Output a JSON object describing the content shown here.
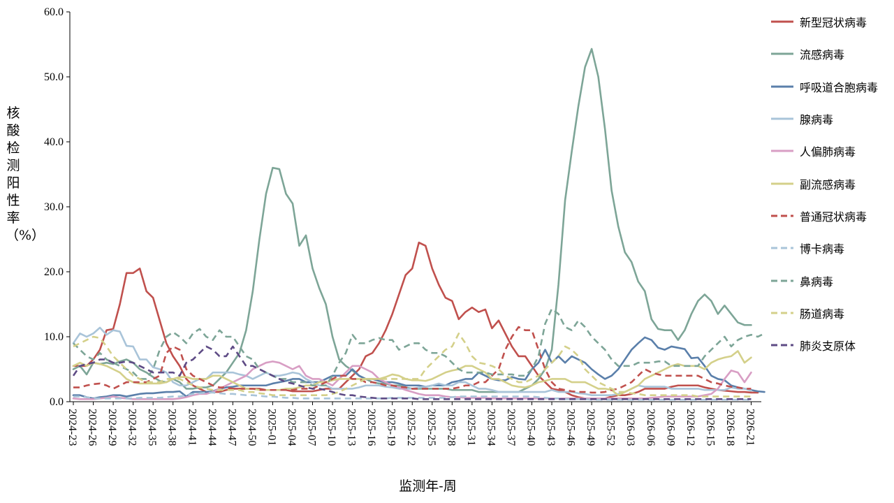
{
  "chart_data": {
    "type": "line",
    "ylabel": "核酸检测阳性率（%）",
    "xlabel": "监测年-周",
    "ylim": [
      0,
      60
    ],
    "y_ticks": [
      "0.0",
      "10.0",
      "20.0",
      "30.0",
      "40.0",
      "50.0",
      "60.0"
    ],
    "x_tick_labels": [
      "2024-23",
      "2024-26",
      "2024-29",
      "2024-32",
      "2024-35",
      "2024-38",
      "2024-41",
      "2024-44",
      "2024-47",
      "2024-50",
      "2025-01",
      "2025-04",
      "2025-07",
      "2025-10",
      "2025-13",
      "2025-16",
      "2025-19",
      "2025-22",
      "2025-25",
      "2025-28",
      "2025-31",
      "2025-34",
      "2025-37",
      "2025-40",
      "2025-43",
      "2025-46",
      "2025-49",
      "2025-52",
      "2026-03",
      "2026-06",
      "2026-09",
      "2026-12",
      "2026-15",
      "2026-18",
      "2026-21"
    ],
    "x_points_per_tick": 3,
    "legend_position": "right",
    "series": [
      {
        "name": "新型冠状病毒",
        "color": "#C0504D",
        "dash": "solid",
        "values": [
          5.5,
          5.5,
          5.5,
          6.5,
          8,
          11,
          11.2,
          15,
          19.8,
          19.8,
          20.5,
          17,
          16,
          12.5,
          9,
          7,
          5.5,
          3.5,
          2.5,
          2,
          1.5,
          1.5,
          1.5,
          1.8,
          2,
          2,
          2,
          2,
          2,
          1.8,
          1.8,
          1.8,
          1.8,
          1.6,
          1.6,
          1.6,
          1.6,
          1.8,
          2,
          2,
          2,
          3,
          4,
          5,
          7,
          7.5,
          9,
          11,
          13.5,
          16.5,
          19.5,
          20.5,
          24.5,
          24,
          20.5,
          18,
          16,
          15.5,
          12.7,
          13.8,
          14.5,
          13.8,
          14.2,
          11.3,
          12.5,
          10.5,
          8.5,
          7,
          7,
          5.5,
          4,
          3,
          2,
          1.8,
          1.5,
          1,
          0.7,
          0.5,
          0.5,
          0.5,
          0.5,
          0.8,
          1,
          1,
          1.2,
          1.5,
          2,
          2,
          2,
          2,
          2.3,
          2.5,
          2.5,
          2.5,
          2.5,
          2.2,
          2,
          1.8,
          1.7,
          1.6,
          1.5,
          1.5,
          1.4,
          1.4
        ]
      },
      {
        "name": "流感病毒",
        "color": "#7DA597",
        "dash": "solid",
        "values": [
          5,
          5.5,
          4.2,
          6,
          5.8,
          6,
          5.8,
          6.2,
          6.5,
          6,
          5,
          4.5,
          3.8,
          3.2,
          3,
          3.5,
          3,
          2,
          2,
          2.2,
          2.2,
          2.5,
          3.5,
          4.5,
          6,
          7.5,
          11,
          17,
          25,
          32,
          36,
          35.8,
          32,
          30.5,
          24,
          25.6,
          20.5,
          17.5,
          15,
          10,
          6.5,
          5.5,
          4.8,
          4,
          3.5,
          3,
          2.8,
          2.8,
          2.5,
          2.5,
          2.2,
          2,
          2,
          2,
          2,
          2,
          2,
          1.8,
          1.8,
          1.8,
          1.8,
          1.5,
          1.5,
          1.5,
          1.5,
          1.5,
          1.5,
          1.5,
          2,
          2.5,
          3.5,
          5,
          8,
          18,
          31,
          38.5,
          45.5,
          51.5,
          54.3,
          50,
          42,
          32.5,
          27,
          23,
          21.5,
          18.5,
          17,
          12.7,
          11.2,
          11,
          11,
          9.5,
          11,
          13.5,
          15.5,
          16.5,
          15.5,
          13.5,
          14.8,
          13.5,
          12.2,
          11.8,
          11.8
        ]
      },
      {
        "name": "呼吸道合胞病毒",
        "color": "#5A7FAA",
        "dash": "solid",
        "values": [
          1,
          1,
          0.7,
          0.5,
          0.7,
          0.8,
          1,
          1,
          0.8,
          1,
          1.2,
          1.3,
          1.3,
          1.4,
          1.5,
          1.5,
          1.6,
          0.8,
          1.5,
          1.5,
          1.5,
          1.6,
          2,
          2.2,
          2.3,
          2.5,
          2.5,
          2.5,
          2.5,
          2.5,
          2.8,
          3,
          3.2,
          3.5,
          3.5,
          3,
          3,
          3,
          3.5,
          4,
          4,
          4,
          5,
          4,
          3.5,
          3.5,
          3.2,
          3,
          3,
          2.8,
          2.5,
          2.5,
          2.5,
          2.3,
          2.5,
          2.5,
          2.5,
          3,
          3.2,
          3.5,
          3.5,
          4.5,
          4,
          3.5,
          3.3,
          3.3,
          3.8,
          3.5,
          3.4,
          5,
          6,
          8,
          6,
          7,
          6,
          7,
          6.5,
          6,
          5,
          4.2,
          3.5,
          4,
          5,
          6.5,
          8,
          9,
          9.9,
          9.5,
          8.3,
          8,
          8.5,
          8.3,
          8.1,
          6.7,
          6.8,
          5.5,
          4,
          3.5,
          3.3,
          2.5,
          2.2,
          2,
          1.8,
          1.6,
          1.5
        ]
      },
      {
        "name": "腺病毒",
        "color": "#A9C4D9",
        "dash": "solid",
        "values": [
          9,
          10.5,
          10,
          10.5,
          11.4,
          10.3,
          11,
          10.8,
          8.6,
          8.5,
          6.5,
          6.5,
          5.3,
          5,
          4.5,
          3,
          2.5,
          2.5,
          3,
          3.5,
          3.5,
          4.5,
          4.5,
          4.5,
          4.5,
          4.2,
          4,
          3.5,
          4,
          4.5,
          4,
          4,
          4.2,
          4.5,
          4.3,
          3.5,
          3,
          2.5,
          2.5,
          2,
          2,
          2,
          2,
          2.2,
          2.5,
          2.5,
          2.5,
          2.3,
          2.2,
          2,
          2,
          2,
          2.2,
          2.3,
          2.5,
          2.8,
          2.5,
          2.5,
          3,
          3,
          2.5,
          2,
          2,
          1.8,
          1.5,
          1.5,
          1.5,
          1.5,
          1.5,
          1.5,
          1.5,
          1.5,
          1.8,
          1.5,
          1.5,
          1.5,
          1.3,
          1.2,
          1,
          1,
          1,
          1,
          1.2,
          1.5,
          2,
          2.5,
          2.3,
          2.3,
          2.3,
          2.3,
          2,
          2,
          2,
          2,
          2,
          1.8,
          1.8,
          1.8,
          1.8,
          2.2,
          2,
          2,
          1.7
        ]
      },
      {
        "name": "人偏肺病毒",
        "color": "#D89EC4",
        "dash": "solid",
        "values": [
          0.5,
          0.4,
          0.4,
          0.4,
          0.5,
          0.6,
          0.8,
          0.6,
          0.5,
          0.4,
          0.4,
          0.4,
          0.4,
          0.4,
          0.4,
          0.4,
          0.5,
          0.7,
          1,
          1.2,
          1.2,
          1.5,
          2,
          2.5,
          3,
          3.5,
          4,
          5,
          5.5,
          6,
          6.2,
          6,
          5.5,
          5,
          5.5,
          4,
          3.5,
          3.5,
          3,
          2.5,
          3.5,
          4.5,
          5.5,
          5.5,
          5,
          4.5,
          3.5,
          3,
          2.5,
          2.2,
          1.8,
          1.5,
          1.2,
          1,
          1,
          1,
          0.8,
          0.7,
          0.7,
          0.6,
          0.6,
          0.6,
          0.6,
          0.5,
          0.5,
          0.5,
          0.5,
          0.5,
          0.5,
          0.5,
          0.5,
          0.5,
          0.5,
          0.5,
          0.5,
          0.5,
          0.5,
          0.5,
          0.5,
          0.5,
          0.5,
          0.5,
          0.5,
          0.5,
          0.5,
          0.5,
          0.5,
          0.6,
          0.7,
          0.8,
          0.8,
          0.8,
          0.8,
          0.8,
          0.8,
          1,
          1.2,
          2,
          3.5,
          4.8,
          4.5,
          3,
          4.5
        ]
      },
      {
        "name": "副流感病毒",
        "color": "#D4D08A",
        "dash": "solid",
        "values": [
          5.5,
          6,
          5.5,
          6,
          5.8,
          5.5,
          5,
          4.5,
          3.5,
          3,
          2.8,
          2.8,
          2.8,
          2.8,
          3,
          3.5,
          3.8,
          3.8,
          3.5,
          3.5,
          3.5,
          4,
          4,
          3.5,
          3,
          2.5,
          2,
          2,
          1.8,
          1.8,
          1.8,
          1.8,
          2,
          2,
          2.2,
          2.5,
          2.5,
          3,
          3,
          3.3,
          3.5,
          3.5,
          3.5,
          3.5,
          3.5,
          3.5,
          3.5,
          3.8,
          4.2,
          4,
          3.5,
          3.3,
          3.3,
          3.2,
          3.5,
          4,
          4.5,
          4.8,
          5,
          5.5,
          5.5,
          5,
          4.5,
          3.5,
          3.5,
          3,
          2.5,
          2.3,
          2.2,
          2.5,
          3,
          3.2,
          3.5,
          3.5,
          3.5,
          3,
          3,
          3,
          2.5,
          2,
          2,
          1.8,
          1,
          1.5,
          2,
          2.5,
          3.5,
          4,
          4.5,
          5,
          5.5,
          5.8,
          5.5,
          5.5,
          5.5,
          5,
          6,
          6.5,
          6.8,
          7,
          7.8,
          6,
          6.8
        ]
      },
      {
        "name": "普通冠状病毒",
        "color": "#C0504D",
        "dash": "dashed",
        "values": [
          2.2,
          2.2,
          2.5,
          2.7,
          2.8,
          2.5,
          2,
          2.5,
          3,
          3,
          3,
          3,
          3.5,
          4,
          7.5,
          8.5,
          8,
          5,
          4,
          3.5,
          3,
          2.5,
          2.2,
          2.2,
          2,
          2,
          2,
          2,
          1.8,
          1.8,
          1.8,
          1.8,
          1.8,
          1.8,
          2,
          2,
          2,
          2.5,
          3,
          3.5,
          4,
          4,
          3.5,
          3.5,
          3,
          3,
          2.8,
          2.5,
          2.5,
          2.3,
          2.2,
          2,
          2,
          2,
          2,
          2,
          2,
          2,
          2.2,
          2.5,
          2.5,
          3,
          3,
          4,
          5,
          8,
          10,
          11.5,
          11,
          11,
          8,
          5,
          3,
          2,
          1.8,
          1.6,
          1.5,
          1.5,
          1.4,
          1.4,
          1.5,
          1.8,
          2,
          2.5,
          3,
          4,
          5,
          4.5,
          4.2,
          4,
          4,
          4,
          4,
          4,
          4,
          3.5,
          3,
          2.8,
          2.5,
          2.3,
          2.2,
          2,
          2
        ]
      },
      {
        "name": "博卡病毒",
        "color": "#A9C4D9",
        "dash": "dashed",
        "values": [
          0.8,
          0.8,
          0.7,
          0.5,
          0.5,
          0.5,
          0.5,
          0.5,
          0.5,
          0.5,
          0.6,
          0.6,
          0.6,
          0.6,
          0.7,
          0.8,
          0.8,
          1,
          1.2,
          1.3,
          1.4,
          1.4,
          1.3,
          1.2,
          1.2,
          1.1,
          1,
          1,
          0.9,
          0.8,
          0.8,
          0.7,
          0.6,
          0.6,
          0.5,
          0.5,
          0.5,
          0.5,
          0.5,
          0.5,
          0.5,
          0.5,
          0.5,
          0.5,
          0.5,
          0.5,
          0.5,
          0.5,
          0.6,
          0.6,
          0.6,
          0.6,
          0.6,
          0.6,
          0.6,
          0.6,
          0.6,
          0.7,
          0.8,
          0.8,
          0.8,
          0.8,
          0.8,
          0.8,
          0.8,
          0.8,
          0.8,
          0.8,
          0.8,
          0.8,
          0.7,
          0.6,
          0.5,
          0.5,
          0.4,
          0.4,
          0.4,
          0.4,
          0.3,
          0.3,
          0.3,
          0.3,
          0.3,
          0.3,
          0.3,
          0.3,
          0.3,
          0.3,
          0.3,
          0.3,
          0.3,
          0.3,
          0.3,
          0.3,
          0.3,
          0.3,
          0.3,
          0.3,
          0.3,
          0.3,
          0.3,
          0.3,
          0.3
        ]
      },
      {
        "name": "鼻病毒",
        "color": "#7DA597",
        "dash": "dashed",
        "values": [
          9,
          8,
          7,
          6.5,
          7.5,
          6.5,
          6,
          5.5,
          5,
          4.5,
          3.5,
          3.5,
          5,
          8,
          10,
          10.7,
          10,
          9,
          10.5,
          11.2,
          10,
          9.5,
          11,
          10,
          10,
          8.5,
          7,
          6.5,
          5,
          4.5,
          4,
          3.5,
          3.5,
          3,
          3,
          3,
          2.5,
          2.5,
          2.5,
          4,
          6,
          7.5,
          10.3,
          9,
          9,
          9.5,
          9.8,
          9.5,
          9.5,
          8,
          8.5,
          9,
          9,
          8,
          7.5,
          7.5,
          7,
          6,
          5,
          4.5,
          4.5,
          4.5,
          4.5,
          4.2,
          4.2,
          4.2,
          4.2,
          4,
          4,
          5,
          7,
          12,
          14.3,
          13.5,
          11.5,
          11,
          12.5,
          11.5,
          10,
          9,
          8,
          6.5,
          5.5,
          5.5,
          5.5,
          6,
          6,
          6,
          6.2,
          6.2,
          5.5,
          5.5,
          5.5,
          5.5,
          5.5,
          7,
          8,
          9,
          10,
          8.5,
          9.5,
          10,
          10.3,
          10,
          10.5
        ]
      },
      {
        "name": "肠道病毒",
        "color": "#D4D08A",
        "dash": "dashed",
        "values": [
          8.5,
          9,
          9.5,
          10,
          9.8,
          8.5,
          7,
          6,
          5,
          4,
          3.5,
          3,
          3,
          3,
          3.5,
          3.5,
          3.5,
          3,
          2.5,
          2.2,
          2,
          1.8,
          1.8,
          1.8,
          1.8,
          1.8,
          1.5,
          1.5,
          1.3,
          1.2,
          1,
          1,
          1,
          1,
          1,
          1,
          1,
          1,
          1,
          1.2,
          1.5,
          2,
          2.5,
          3,
          3.5,
          3.5,
          3.5,
          3.5,
          3.5,
          3.5,
          3.5,
          3.5,
          3.5,
          5,
          6,
          7,
          8,
          8.5,
          10.5,
          9,
          7,
          6,
          5.8,
          5.5,
          5,
          4,
          3.5,
          3,
          3,
          3.5,
          4,
          5,
          6,
          7,
          8.5,
          8,
          7,
          5,
          4,
          3,
          2.5,
          2,
          1.5,
          1.5,
          1.3,
          1.2,
          1,
          1,
          1,
          1,
          1,
          1,
          1,
          1,
          0.8,
          0.8,
          0.8,
          0.8,
          0.8,
          0.8,
          0.8,
          0.8,
          0.8
        ]
      },
      {
        "name": "肺炎支原体",
        "color": "#5E4B85",
        "dash": "dashed",
        "values": [
          4,
          5.5,
          5.8,
          6,
          6.5,
          6.5,
          6,
          6,
          6.2,
          6,
          5.5,
          5,
          4.5,
          4.5,
          4.5,
          4.5,
          4,
          6,
          6.5,
          7.5,
          8.5,
          8,
          7,
          7,
          8.5,
          7,
          5.5,
          5.5,
          5,
          4.5,
          4,
          3.5,
          3,
          2.8,
          2.5,
          2.2,
          2,
          2,
          1.8,
          1.5,
          1.2,
          1,
          1,
          0.8,
          0.7,
          0.6,
          0.5,
          0.5,
          0.5,
          0.5,
          0.5,
          0.5,
          0.4,
          0.4,
          0.4,
          0.4,
          0.4,
          0.4,
          0.4,
          0.4,
          0.4,
          0.4,
          0.4,
          0.4,
          0.4,
          0.4,
          0.4,
          0.4,
          0.4,
          0.4,
          0.4,
          0.4,
          0.4,
          0.4,
          0.4,
          0.4,
          0.4,
          0.4,
          0.4,
          0.4,
          0.4,
          0.4,
          0.4,
          0.4,
          0.4,
          0.4,
          0.4,
          0.4,
          0.4,
          0.4,
          0.4,
          0.4,
          0.4,
          0.4,
          0.4,
          0.4,
          0.4,
          0.4,
          0.4,
          0.4,
          0.4,
          0.4,
          0.4
        ]
      }
    ]
  }
}
